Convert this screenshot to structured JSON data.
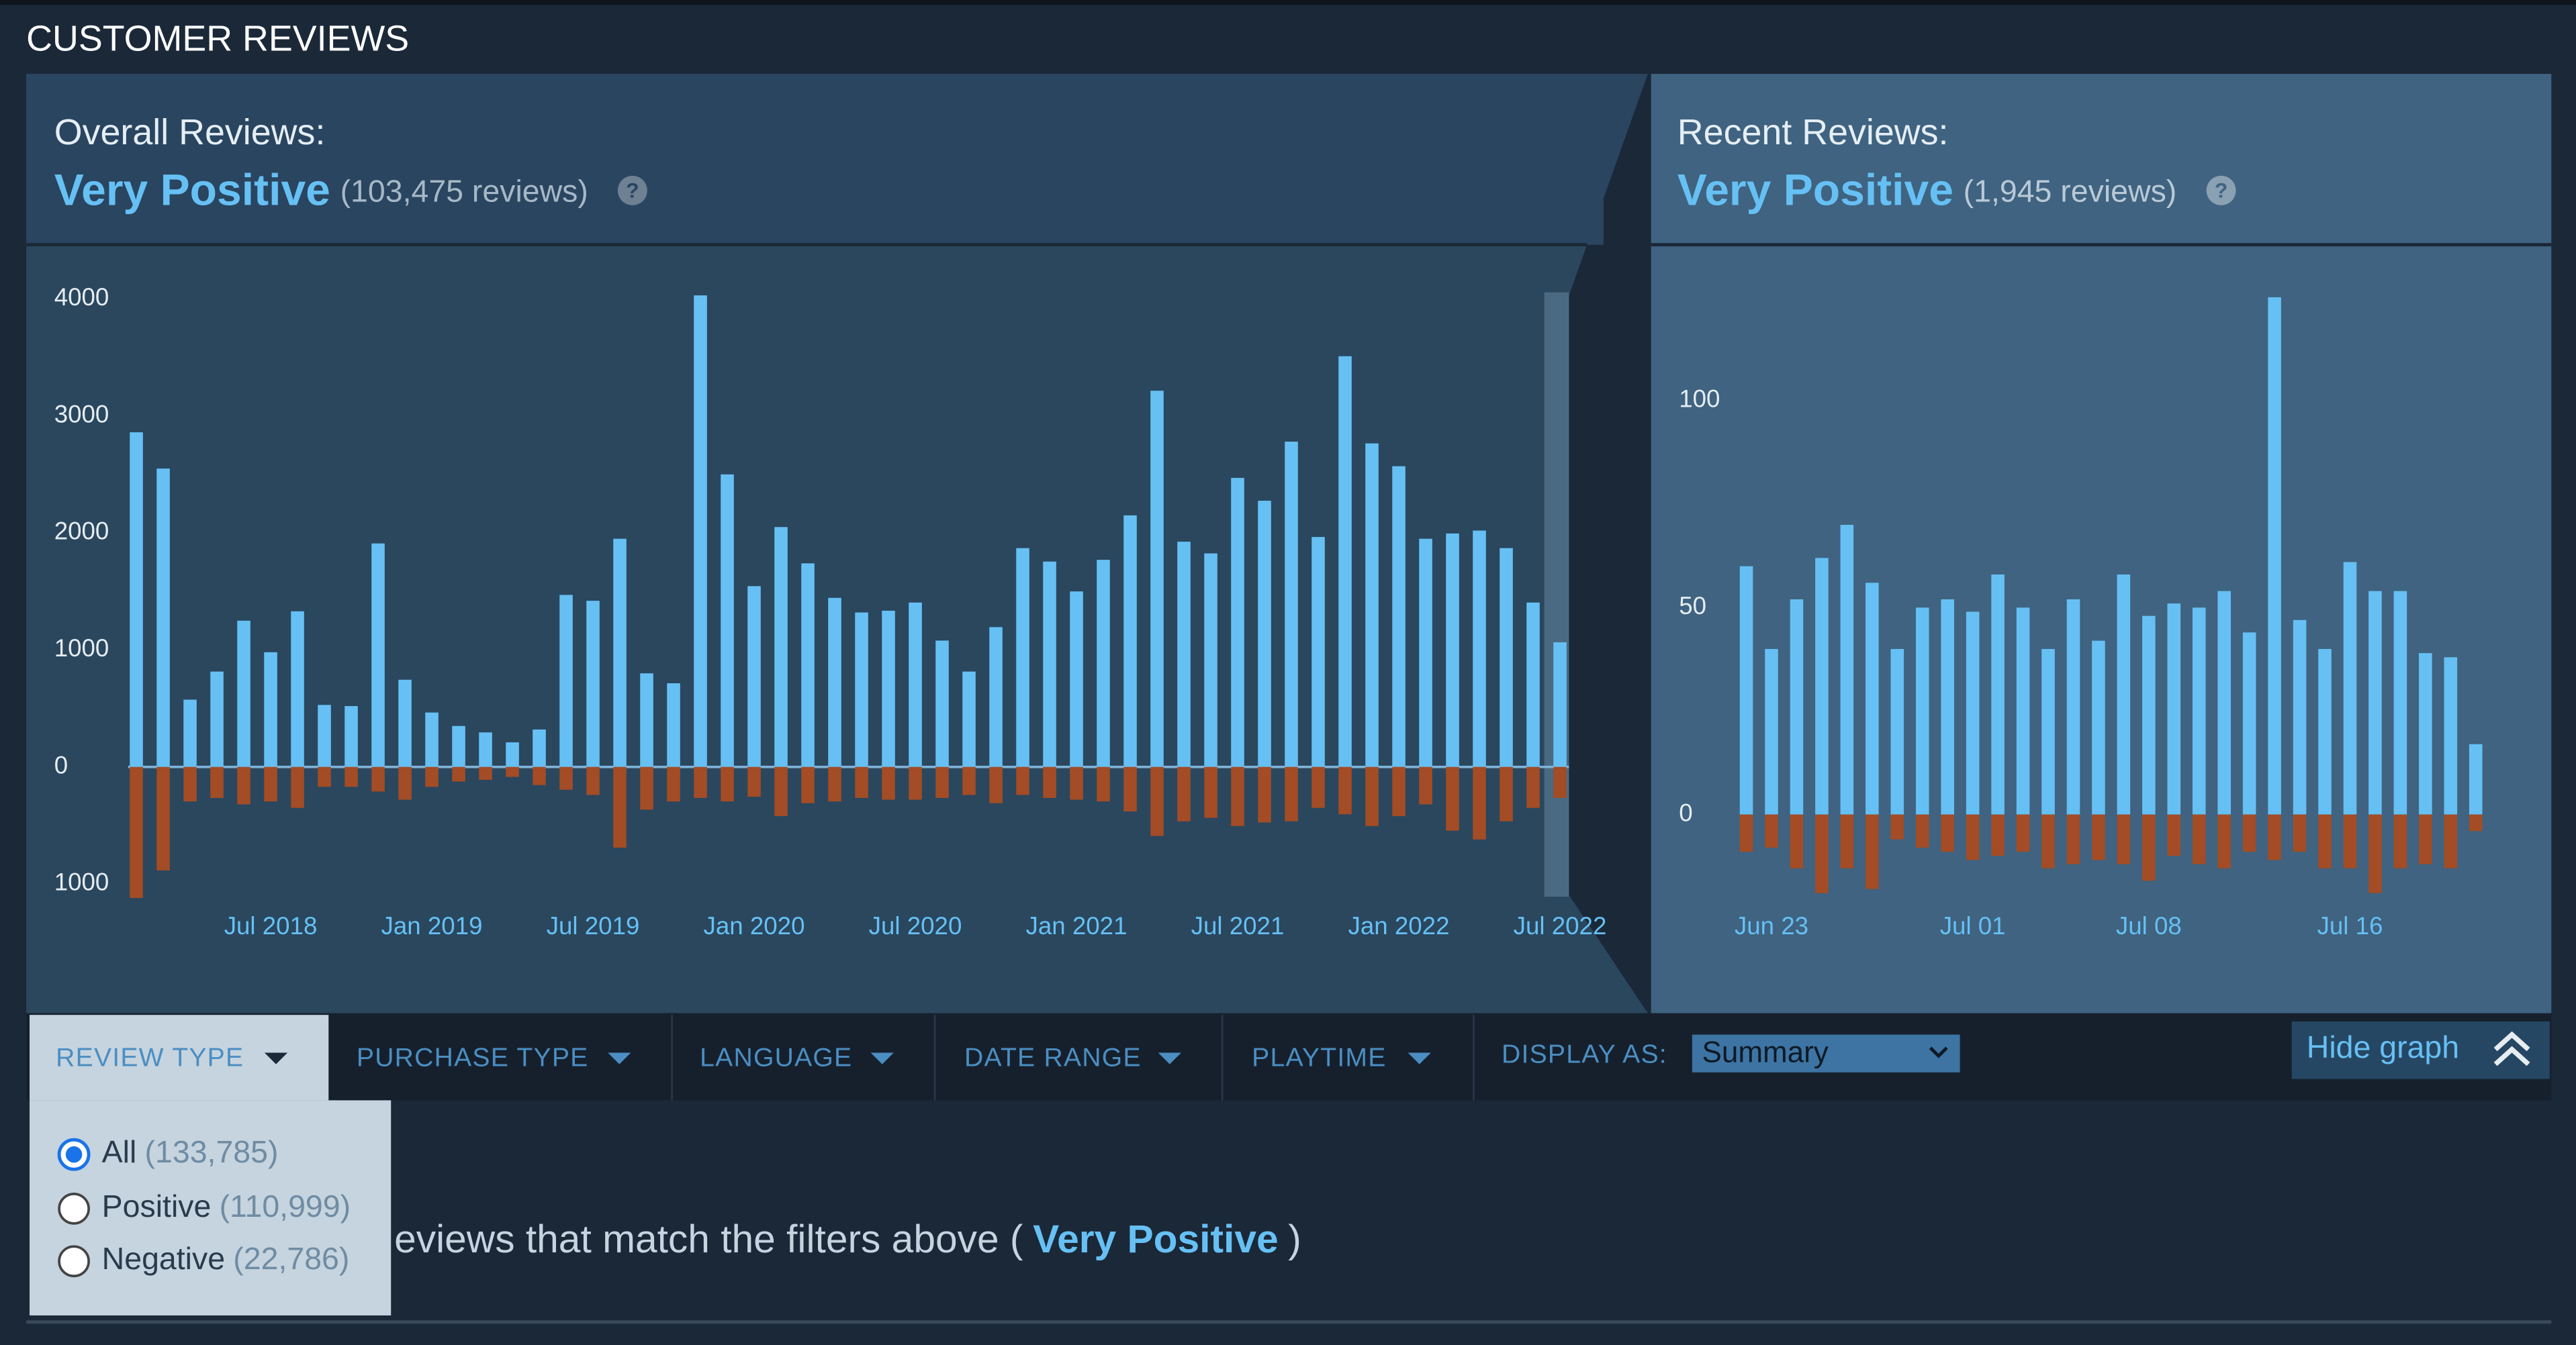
{
  "header": {
    "title": "CUSTOMER REVIEWS"
  },
  "overall": {
    "label": "Overall Reviews:",
    "rating": "Very Positive",
    "count": "(103,475 reviews)",
    "help": "?"
  },
  "recent": {
    "label": "Recent Reviews:",
    "rating": "Very Positive",
    "count": "(1,945 reviews)",
    "help": "?"
  },
  "chart_data": [
    {
      "type": "bar",
      "categories": [
        null,
        null,
        null,
        null,
        null,
        "Jul 2018",
        null,
        null,
        null,
        null,
        null,
        "Jan 2019",
        null,
        null,
        null,
        null,
        null,
        "Jul 2019",
        null,
        null,
        null,
        null,
        null,
        "Jan 2020",
        null,
        null,
        null,
        null,
        null,
        "Jul 2020",
        null,
        null,
        null,
        null,
        null,
        "Jan 2021",
        null,
        null,
        null,
        null,
        null,
        "Jul 2021",
        null,
        null,
        null,
        null,
        null,
        "Jan 2022",
        null,
        null,
        null,
        null,
        null,
        "Jul 2022"
      ],
      "series": [
        {
          "color": "#66c0f4",
          "values": [
            2860,
            2550,
            575,
            815,
            1250,
            980,
            1330,
            530,
            520,
            1910,
            745,
            465,
            350,
            295,
            210,
            320,
            1470,
            1420,
            1950,
            800,
            715,
            4030,
            2500,
            1545,
            2050,
            1740,
            1445,
            1320,
            1335,
            1405,
            1080,
            815,
            1195,
            1870,
            1755,
            1500,
            1770,
            2150,
            3215,
            1925,
            1825,
            2470,
            2275,
            2780,
            1965,
            3510,
            2765,
            2570,
            1950,
            1995,
            2020,
            1870,
            1405,
            1065
          ]
        },
        {
          "color": "#a34c25",
          "values": [
            -1120,
            -885,
            -295,
            -265,
            -320,
            -295,
            -350,
            -170,
            -170,
            -210,
            -280,
            -170,
            -125,
            -110,
            -85,
            -155,
            -195,
            -240,
            -690,
            -365,
            -295,
            -265,
            -295,
            -255,
            -420,
            -310,
            -295,
            -265,
            -280,
            -280,
            -265,
            -240,
            -310,
            -240,
            -265,
            -280,
            -295,
            -380,
            -590,
            -465,
            -435,
            -505,
            -475,
            -465,
            -350,
            -405,
            -505,
            -420,
            -320,
            -545,
            -620,
            -465,
            -350,
            -265
          ]
        }
      ],
      "ylim": [
        -1200,
        4200
      ],
      "yticks": [
        {
          "value": -1000,
          "label": "1000"
        },
        0,
        1000,
        2000,
        3000,
        4000
      ],
      "zero_line": true
    },
    {
      "type": "bar",
      "categories": [
        null,
        "Jun 23",
        null,
        null,
        null,
        null,
        null,
        null,
        null,
        "Jul 01",
        null,
        null,
        null,
        null,
        null,
        null,
        "Jul 08",
        null,
        null,
        null,
        null,
        null,
        null,
        null,
        "Jul 16",
        null,
        null,
        null,
        null,
        null
      ],
      "series": [
        {
          "color": "#66c0f4",
          "values": [
            60,
            40,
            52,
            62,
            70,
            56,
            40,
            50,
            52,
            49,
            58,
            50,
            40,
            52,
            42,
            58,
            48,
            51,
            50,
            54,
            44,
            125,
            47,
            40,
            61,
            54,
            54,
            39,
            38,
            17
          ]
        },
        {
          "color": "#a34c25",
          "values": [
            -9,
            -8,
            -13,
            -19,
            -13,
            -18,
            -6,
            -8,
            -9,
            -11,
            -10,
            -9,
            -13,
            -12,
            -11,
            -12,
            -16,
            -10,
            -12,
            -13,
            -9,
            -11,
            -9,
            -13,
            -13,
            -19,
            -13,
            -12,
            -13,
            -4
          ]
        }
      ],
      "ylim": [
        -22,
        130
      ],
      "yticks": [
        0,
        50,
        100
      ],
      "zero_line": false
    }
  ],
  "filters": {
    "tabs": [
      "REVIEW TYPE",
      "PURCHASE TYPE",
      "LANGUAGE",
      "DATE RANGE",
      "PLAYTIME"
    ],
    "display_as": "DISPLAY AS:",
    "display_value": "Summary",
    "hide_graph": "Hide graph"
  },
  "review_type_menu": {
    "options": [
      {
        "label": "All",
        "count": "(133,785)"
      },
      {
        "label": "Positive",
        "count": "(110,999)"
      },
      {
        "label": "Negative",
        "count": "(22,786)"
      }
    ]
  },
  "summary": {
    "text": "eviews that match the filters above (",
    "rating": "Very Positive",
    "close": ")"
  }
}
